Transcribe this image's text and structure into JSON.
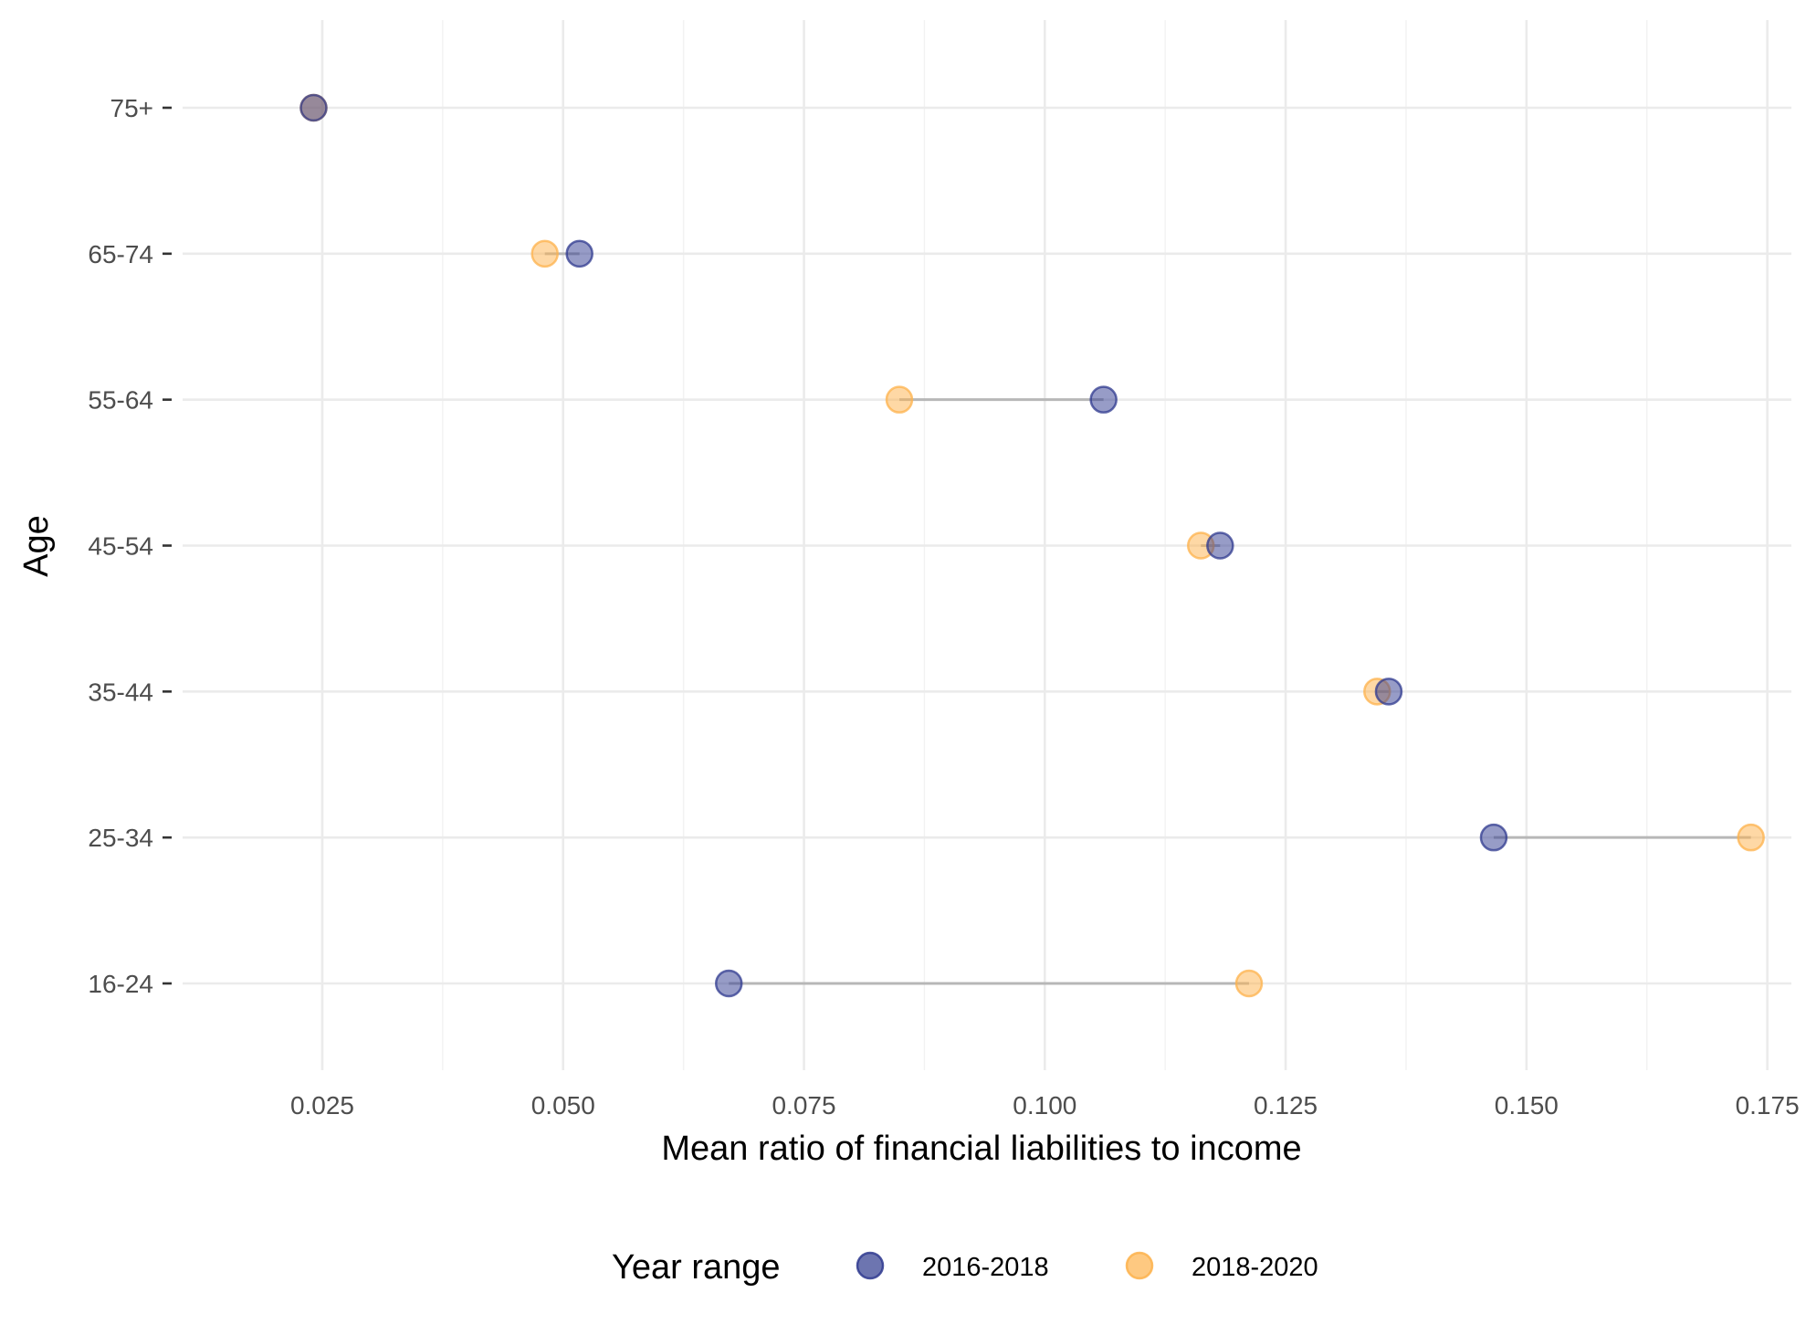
{
  "chart_data": {
    "type": "dumbbell",
    "title": "",
    "xlabel": "Mean ratio of financial liabilities to income",
    "ylabel": "Age",
    "xlim": [
      0.0105,
      0.1775
    ],
    "x_ticks": [
      0.025,
      0.05,
      0.075,
      0.1,
      0.125,
      0.15,
      0.175
    ],
    "x_tick_labels": [
      "0.025",
      "0.050",
      "0.075",
      "0.100",
      "0.125",
      "0.150",
      "0.175"
    ],
    "categories": [
      "16-24",
      "25-34",
      "35-44",
      "45-54",
      "55-64",
      "65-74",
      "75+"
    ],
    "series": [
      {
        "name": "2016-2018",
        "color": "#2f3a8f",
        "values": [
          0.0672,
          0.1466,
          0.1357,
          0.1182,
          0.1061,
          0.0517,
          0.0241
        ]
      },
      {
        "name": "2018-2020",
        "color": "#fdb24b",
        "values": [
          0.1212,
          0.1733,
          0.1345,
          0.1162,
          0.0849,
          0.0481,
          0.0241
        ]
      }
    ],
    "grid": true,
    "legend": {
      "title": "Year range",
      "position": "bottom"
    }
  }
}
